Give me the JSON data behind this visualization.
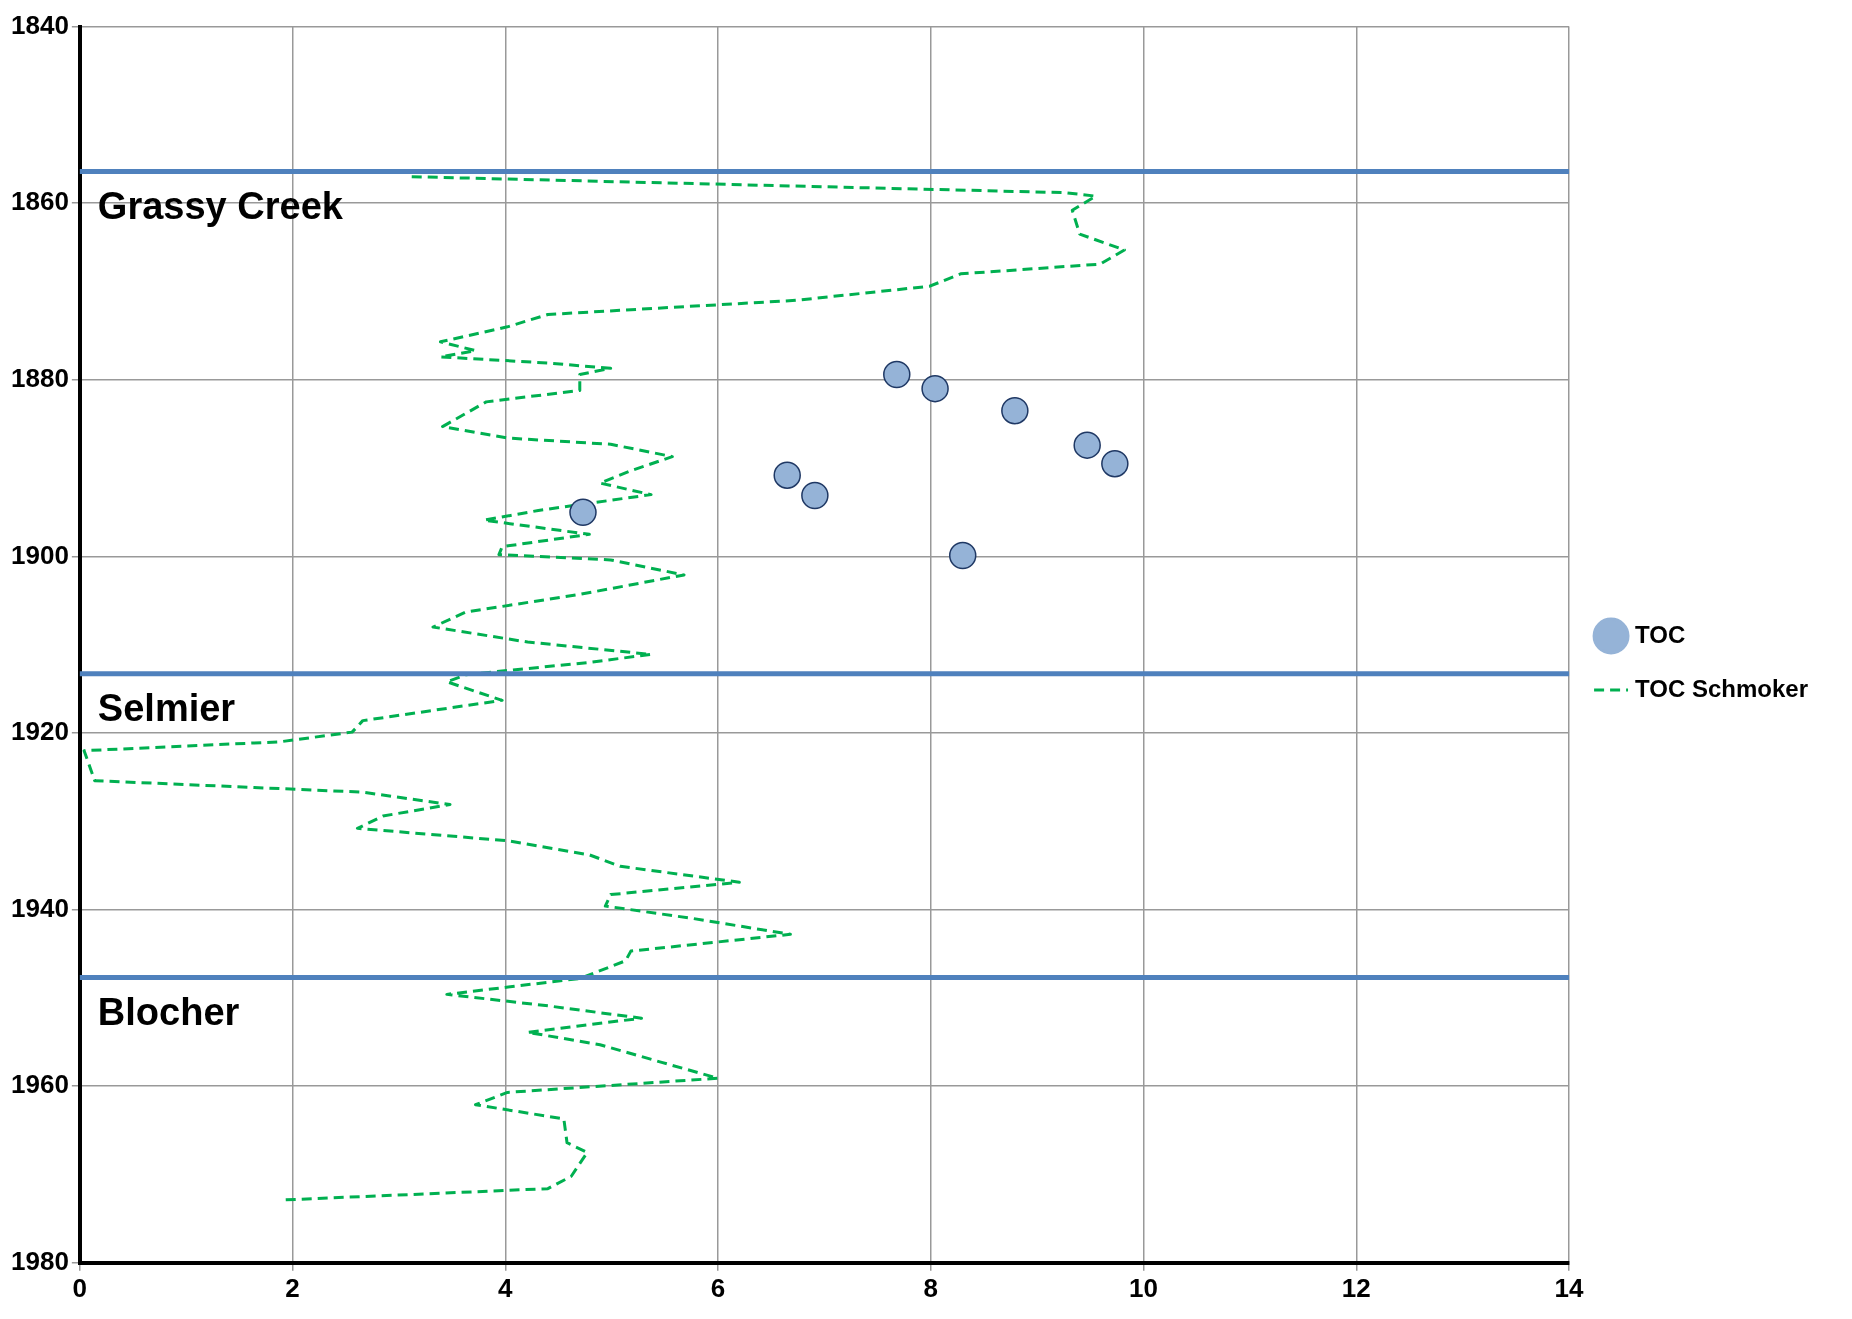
{
  "chart_data": {
    "type": "scatter",
    "xlim": [
      0,
      14
    ],
    "xticks": [
      0,
      2,
      4,
      6,
      8,
      10,
      12,
      14
    ],
    "ylim": [
      1980,
      1840
    ],
    "yticks": [
      1840,
      1860,
      1880,
      1900,
      1920,
      1940,
      1960,
      1980
    ],
    "grid": true,
    "legend": "right",
    "series": [
      {
        "name": "TOC",
        "marker": "circle",
        "color": "#95b3d7",
        "x": [
          7.68,
          8.04,
          8.79,
          9.47,
          9.73,
          6.65,
          6.91,
          4.73,
          8.3
        ],
        "values": [
          1879.4,
          1881.0,
          1883.5,
          1887.4,
          1889.5,
          1890.8,
          1893.1,
          1895.0,
          1899.9
        ]
      },
      {
        "name": "TOC Schmoker",
        "type": "line",
        "line_style": "dashed",
        "marker": "none",
        "color": "#00b050",
        "x": [
          3.12,
          9.25,
          9.55,
          9.33,
          9.4,
          9.82,
          9.59,
          8.28,
          7.99,
          6.73,
          4.4,
          4.02,
          3.39,
          3.72,
          3.39,
          4.4,
          4.99,
          4.7,
          4.7,
          3.82,
          3.41,
          4.02,
          4.99,
          5.57,
          5.18,
          4.89,
          5.37,
          4.31,
          3.8,
          4.79,
          3.97,
          3.94,
          4.99,
          5.68,
          4.7,
          3.63,
          3.32,
          4.21,
          5.37,
          4.79,
          3.63,
          3.45,
          3.97,
          2.66,
          2.56,
          1.88,
          0.04,
          0.14,
          2.66,
          3.48,
          2.85,
          2.61,
          4.02,
          4.79,
          5.08,
          6.2,
          4.99,
          4.94,
          5.76,
          6.68,
          5.18,
          5.13,
          4.7,
          3.45,
          4.4,
          5.28,
          4.21,
          4.89,
          5.47,
          6.0,
          4.02,
          3.72,
          4.55,
          4.58,
          4.77,
          4.62,
          4.4,
          1.88
        ],
        "values": [
          1857.0,
          1858.8,
          1859.2,
          1860.8,
          1863.5,
          1865.3,
          1866.9,
          1868.0,
          1869.4,
          1871.0,
          1872.6,
          1874.0,
          1875.7,
          1876.7,
          1877.4,
          1878.1,
          1878.7,
          1879.4,
          1881.2,
          1882.5,
          1885.3,
          1886.6,
          1887.3,
          1888.7,
          1890.3,
          1891.7,
          1893.0,
          1894.8,
          1895.9,
          1897.5,
          1898.9,
          1899.8,
          1900.4,
          1902.1,
          1904.3,
          1906.3,
          1908.0,
          1909.7,
          1911.1,
          1912.0,
          1913.4,
          1914.2,
          1916.3,
          1918.6,
          1919.9,
          1921.0,
          1922.0,
          1925.4,
          1926.7,
          1928.1,
          1929.4,
          1930.8,
          1932.2,
          1933.8,
          1935.1,
          1936.9,
          1938.3,
          1939.6,
          1941.0,
          1942.8,
          1944.7,
          1945.8,
          1947.8,
          1949.6,
          1950.9,
          1952.3,
          1953.9,
          1955.3,
          1957.3,
          1959.1,
          1960.7,
          1962.1,
          1963.7,
          1966.4,
          1967.5,
          1970.2,
          1971.6,
          1972.9
        ]
      }
    ],
    "ref_lines": [
      {
        "axis": "y",
        "value": 1856.4,
        "label": "Grassy Creek",
        "color": "#4f81bd"
      },
      {
        "axis": "y",
        "value": 1913.3,
        "label": "Selmier",
        "color": "#4f81bd"
      },
      {
        "axis": "y",
        "value": 1947.7,
        "label": "Blocher",
        "color": "#4f81bd"
      }
    ]
  }
}
